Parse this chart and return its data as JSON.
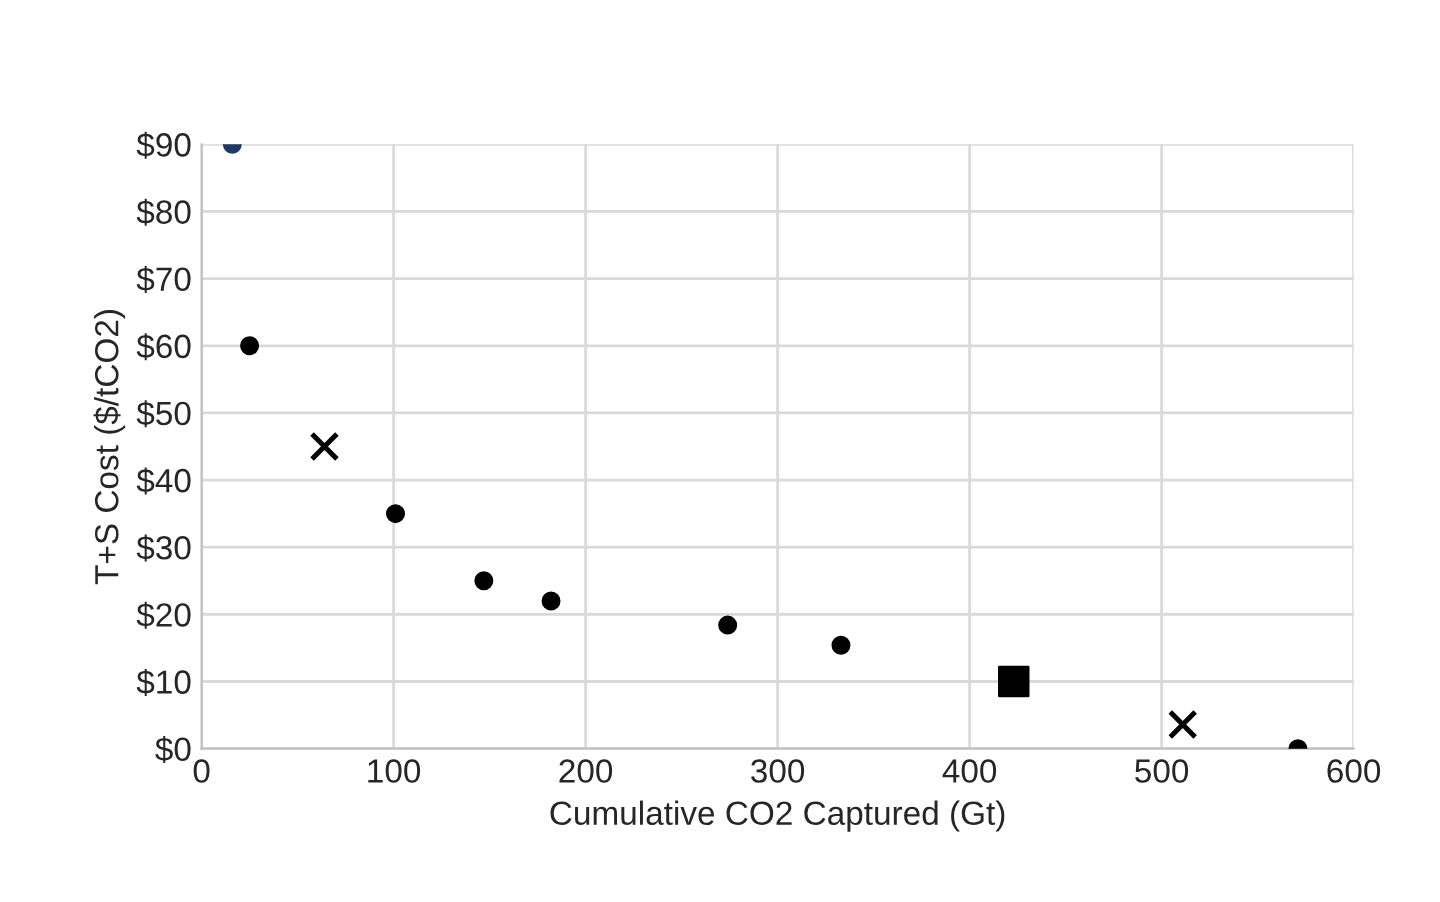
{
  "chart_data": {
    "type": "scatter",
    "xlabel": "Cumulative CO2 Captured (Gt)",
    "ylabel": "T+S Cost ($/tCO2)",
    "xlim": [
      0,
      600
    ],
    "xticks": [
      0,
      100,
      200,
      300,
      400,
      500,
      600
    ],
    "ylim": [
      0,
      90
    ],
    "yticks": [
      {
        "value": 0,
        "label": "$0"
      },
      {
        "value": 10,
        "label": "$10"
      },
      {
        "value": 20,
        "label": "$20"
      },
      {
        "value": 30,
        "label": "$30"
      },
      {
        "value": 40,
        "label": "$40"
      },
      {
        "value": 50,
        "label": "$50"
      },
      {
        "value": 60,
        "label": "$60"
      },
      {
        "value": 70,
        "label": "$70"
      },
      {
        "value": 80,
        "label": "$80"
      },
      {
        "value": 90,
        "label": "$90"
      }
    ],
    "grid": true,
    "series": [
      {
        "color": "#000000",
        "marker": "circle",
        "x": [
          25,
          101,
          147,
          182,
          274,
          333,
          571
        ],
        "values": [
          60,
          35,
          25,
          22,
          18.4,
          15.4,
          0
        ]
      },
      {
        "color": "#1f3864",
        "marker": "circle",
        "x": [
          16
        ],
        "values": [
          90
        ]
      },
      {
        "color": "#000000",
        "marker": "cross",
        "x": [
          64,
          511
        ],
        "values": [
          45,
          3.6
        ]
      },
      {
        "color": "#000000",
        "marker": "square",
        "x": [
          423
        ],
        "values": [
          10
        ]
      }
    ]
  }
}
